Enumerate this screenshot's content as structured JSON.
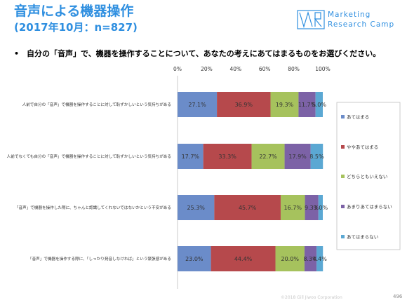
{
  "header": {
    "title": "音声による機器操作",
    "subtitle": "(2017年10月：n=827)"
  },
  "logo": {
    "line1": "Marketing",
    "line2": "Research Camp"
  },
  "question": "•　自分の「音声」で、機器を操作することについて、あなたの考えにあてはまるものをお選びください。",
  "chart_data": {
    "type": "bar",
    "orientation": "horizontal",
    "stacked": "percent",
    "x_ticks": [
      "0%",
      "20%",
      "40%",
      "60%",
      "80%",
      "100%"
    ],
    "xlim": [
      0,
      100
    ],
    "legend_position": "right",
    "categories": [
      "人前で自分の「音声」で機器を操作することに対して恥ずかしいという気持ちがある",
      "人前でなくても自分の「音声」で機器を操作することに対して恥ずかしいという気持ちがある",
      "「音声」で機器を操作した際に、ちゃんと認識してくれないではないかという不安がある",
      "「音声」で機器を操作する際に、「しっかり発音しなければ」という緊張感がある"
    ],
    "series": [
      {
        "name": "あてはまる",
        "color": "#6b8cc9",
        "values": [
          27.1,
          17.7,
          25.3,
          23.0
        ],
        "labels": [
          "27.1%",
          "17.7%",
          "25.3%",
          "23.0%"
        ]
      },
      {
        "name": "ややあてはまる",
        "color": "#b6494c",
        "values": [
          36.9,
          33.3,
          45.7,
          44.4
        ],
        "labels": [
          "36.9%",
          "33.3%",
          "45.7%",
          "44.4%"
        ]
      },
      {
        "name": "どちらともいえない",
        "color": "#a6c25d",
        "values": [
          19.3,
          22.7,
          16.7,
          20.0
        ],
        "labels": [
          "19.3%",
          "22.7%",
          "16.7%",
          "20.0%"
        ]
      },
      {
        "name": "あまりあてはまらない",
        "color": "#7c62a6",
        "values": [
          11.7,
          17.9,
          9.3,
          8.3
        ],
        "labels": [
          "11.7%",
          "17.9%",
          "9.3%",
          "8.3%"
        ]
      },
      {
        "name": "あてはまらない",
        "color": "#5ba8d3",
        "values": [
          5.0,
          8.5,
          3.0,
          4.4
        ],
        "labels": [
          "5.0%",
          "8.5%",
          "3.0%",
          "4.4%"
        ]
      }
    ]
  },
  "footer": {
    "copyright": "©2018 Gill Jiwoo Corporation",
    "page": "496"
  }
}
